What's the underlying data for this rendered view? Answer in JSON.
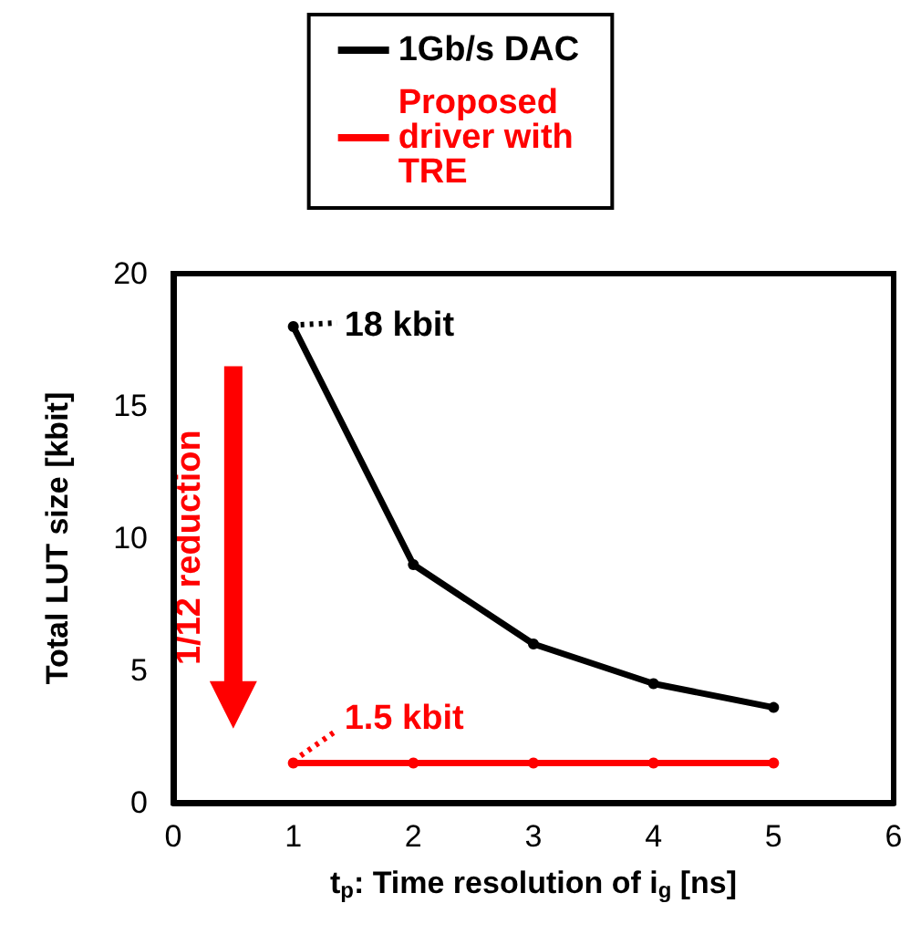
{
  "chart_data": {
    "type": "line",
    "xlabel": "t$_{p}$: Time resolution of i$_{g}$ [ns]",
    "ylabel": "Total LUT size [kbit]",
    "x": [
      1,
      2,
      3,
      4,
      5
    ],
    "series": [
      {
        "name": "1Gb/s DAC",
        "color": "#000000",
        "values": [
          18,
          9,
          6,
          4.5,
          3.6
        ]
      },
      {
        "name": "Proposed driver with TRE",
        "color": "#ff0000",
        "values": [
          1.5,
          1.5,
          1.5,
          1.5,
          1.5
        ]
      }
    ],
    "xlim": [
      0,
      6
    ],
    "xticks": [
      0,
      1,
      2,
      3,
      4,
      5,
      6
    ],
    "ylim": [
      0,
      20
    ],
    "yticks": [
      0,
      5,
      10,
      15,
      20
    ],
    "grid": false,
    "legend": "top",
    "marker": "circle",
    "line_style": "solid",
    "annotations": [
      {
        "text": "18 kbit",
        "x": 1,
        "y": 18
      },
      {
        "text": "1.5 kbit",
        "x": 1,
        "y": 1.5
      },
      "1/12 reduction"
    ]
  }
}
